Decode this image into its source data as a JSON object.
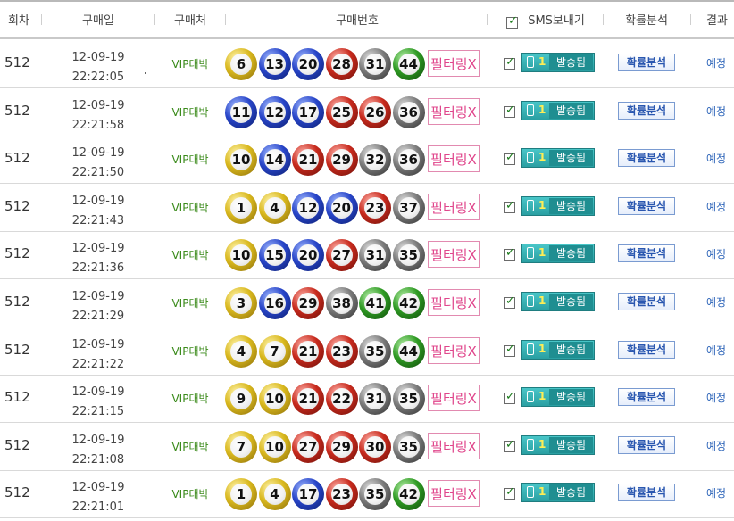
{
  "header": {
    "round": "회차",
    "purchase_date": "구매일",
    "store": "구매처",
    "numbers": "구매번호",
    "sms": "SMS보내기",
    "analysis": "확률분석",
    "result": "결과"
  },
  "colors": {
    "yellow": "#d9b81e",
    "blue": "#2845c8",
    "red": "#c72a1d",
    "gray": "#7a7a7a",
    "green": "#2f9a24"
  },
  "rows": [
    {
      "round": "512",
      "date": "12-09-19",
      "time": "22:22:05",
      "store": "VIP대박",
      "balls": [
        "6",
        "13",
        "20",
        "28",
        "31",
        "44"
      ],
      "filter": "필터링X",
      "sms_count": "1",
      "sms_label": "발송됨",
      "analysis": "확률분석",
      "result": "예정"
    },
    {
      "round": "512",
      "date": "12-09-19",
      "time": "22:21:58",
      "store": "VIP대박",
      "balls": [
        "11",
        "12",
        "17",
        "25",
        "26",
        "36"
      ],
      "filter": "필터링X",
      "sms_count": "1",
      "sms_label": "발송됨",
      "analysis": "확률분석",
      "result": "예정"
    },
    {
      "round": "512",
      "date": "12-09-19",
      "time": "22:21:50",
      "store": "VIP대박",
      "balls": [
        "10",
        "14",
        "21",
        "29",
        "32",
        "36"
      ],
      "filter": "필터링X",
      "sms_count": "1",
      "sms_label": "발송됨",
      "analysis": "확률분석",
      "result": "예정"
    },
    {
      "round": "512",
      "date": "12-09-19",
      "time": "22:21:43",
      "store": "VIP대박",
      "balls": [
        "1",
        "4",
        "12",
        "20",
        "23",
        "37"
      ],
      "filter": "필터링X",
      "sms_count": "1",
      "sms_label": "발송됨",
      "analysis": "확률분석",
      "result": "예정"
    },
    {
      "round": "512",
      "date": "12-09-19",
      "time": "22:21:36",
      "store": "VIP대박",
      "balls": [
        "10",
        "15",
        "20",
        "27",
        "31",
        "35"
      ],
      "filter": "필터링X",
      "sms_count": "1",
      "sms_label": "발송됨",
      "analysis": "확률분석",
      "result": "예정"
    },
    {
      "round": "512",
      "date": "12-09-19",
      "time": "22:21:29",
      "store": "VIP대박",
      "balls": [
        "3",
        "16",
        "29",
        "38",
        "41",
        "42"
      ],
      "filter": "필터링X",
      "sms_count": "1",
      "sms_label": "발송됨",
      "analysis": "확률분석",
      "result": "예정"
    },
    {
      "round": "512",
      "date": "12-09-19",
      "time": "22:21:22",
      "store": "VIP대박",
      "balls": [
        "4",
        "7",
        "21",
        "23",
        "35",
        "44"
      ],
      "filter": "필터링X",
      "sms_count": "1",
      "sms_label": "발송됨",
      "analysis": "확률분석",
      "result": "예정"
    },
    {
      "round": "512",
      "date": "12-09-19",
      "time": "22:21:15",
      "store": "VIP대박",
      "balls": [
        "9",
        "10",
        "21",
        "22",
        "31",
        "35"
      ],
      "filter": "필터링X",
      "sms_count": "1",
      "sms_label": "발송됨",
      "analysis": "확률분석",
      "result": "예정"
    },
    {
      "round": "512",
      "date": "12-09-19",
      "time": "22:21:08",
      "store": "VIP대박",
      "balls": [
        "7",
        "10",
        "27",
        "29",
        "30",
        "35"
      ],
      "filter": "필터링X",
      "sms_count": "1",
      "sms_label": "발송됨",
      "analysis": "확률분석",
      "result": "예정"
    },
    {
      "round": "512",
      "date": "12-09-19",
      "time": "22:21:01",
      "store": "VIP대박",
      "balls": [
        "1",
        "4",
        "17",
        "23",
        "35",
        "42"
      ],
      "filter": "필터링X",
      "sms_count": "1",
      "sms_label": "발송됨",
      "analysis": "확률분석",
      "result": "예정"
    }
  ]
}
